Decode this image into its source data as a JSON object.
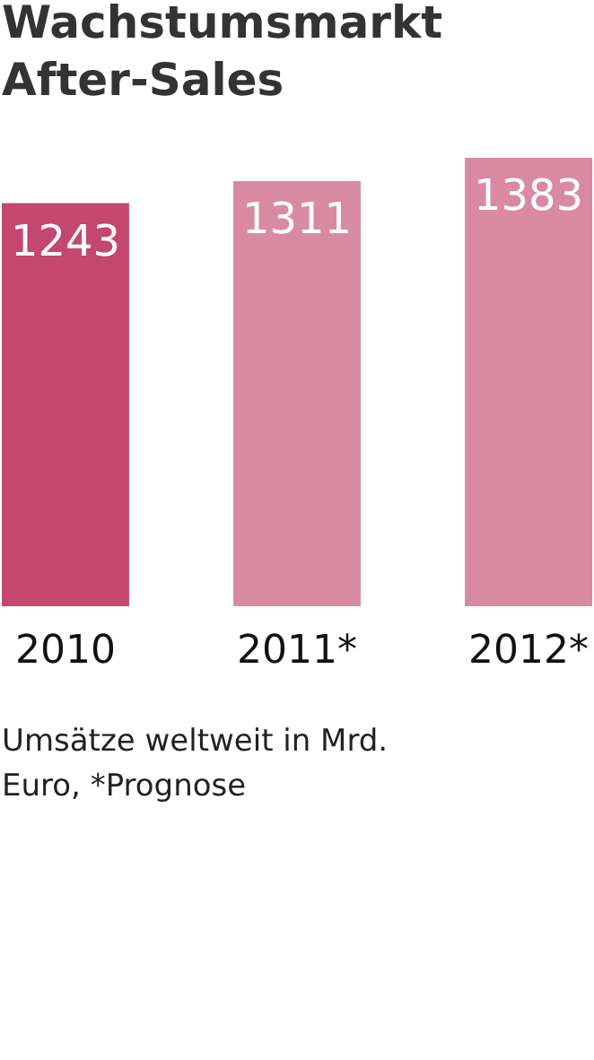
{
  "chart_data": {
    "type": "bar",
    "title": "Wachstumsmarkt After-Sales",
    "categories": [
      "2010",
      "2011*",
      "2012*"
    ],
    "values": [
      1243,
      1311,
      1383
    ],
    "colors": [
      "#c4476f",
      "#d98aa3",
      "#d98aa3"
    ],
    "data_labels": true,
    "annotations": [
      "Umsätze weltweit in Mrd. Euro, *Prognose"
    ]
  }
}
